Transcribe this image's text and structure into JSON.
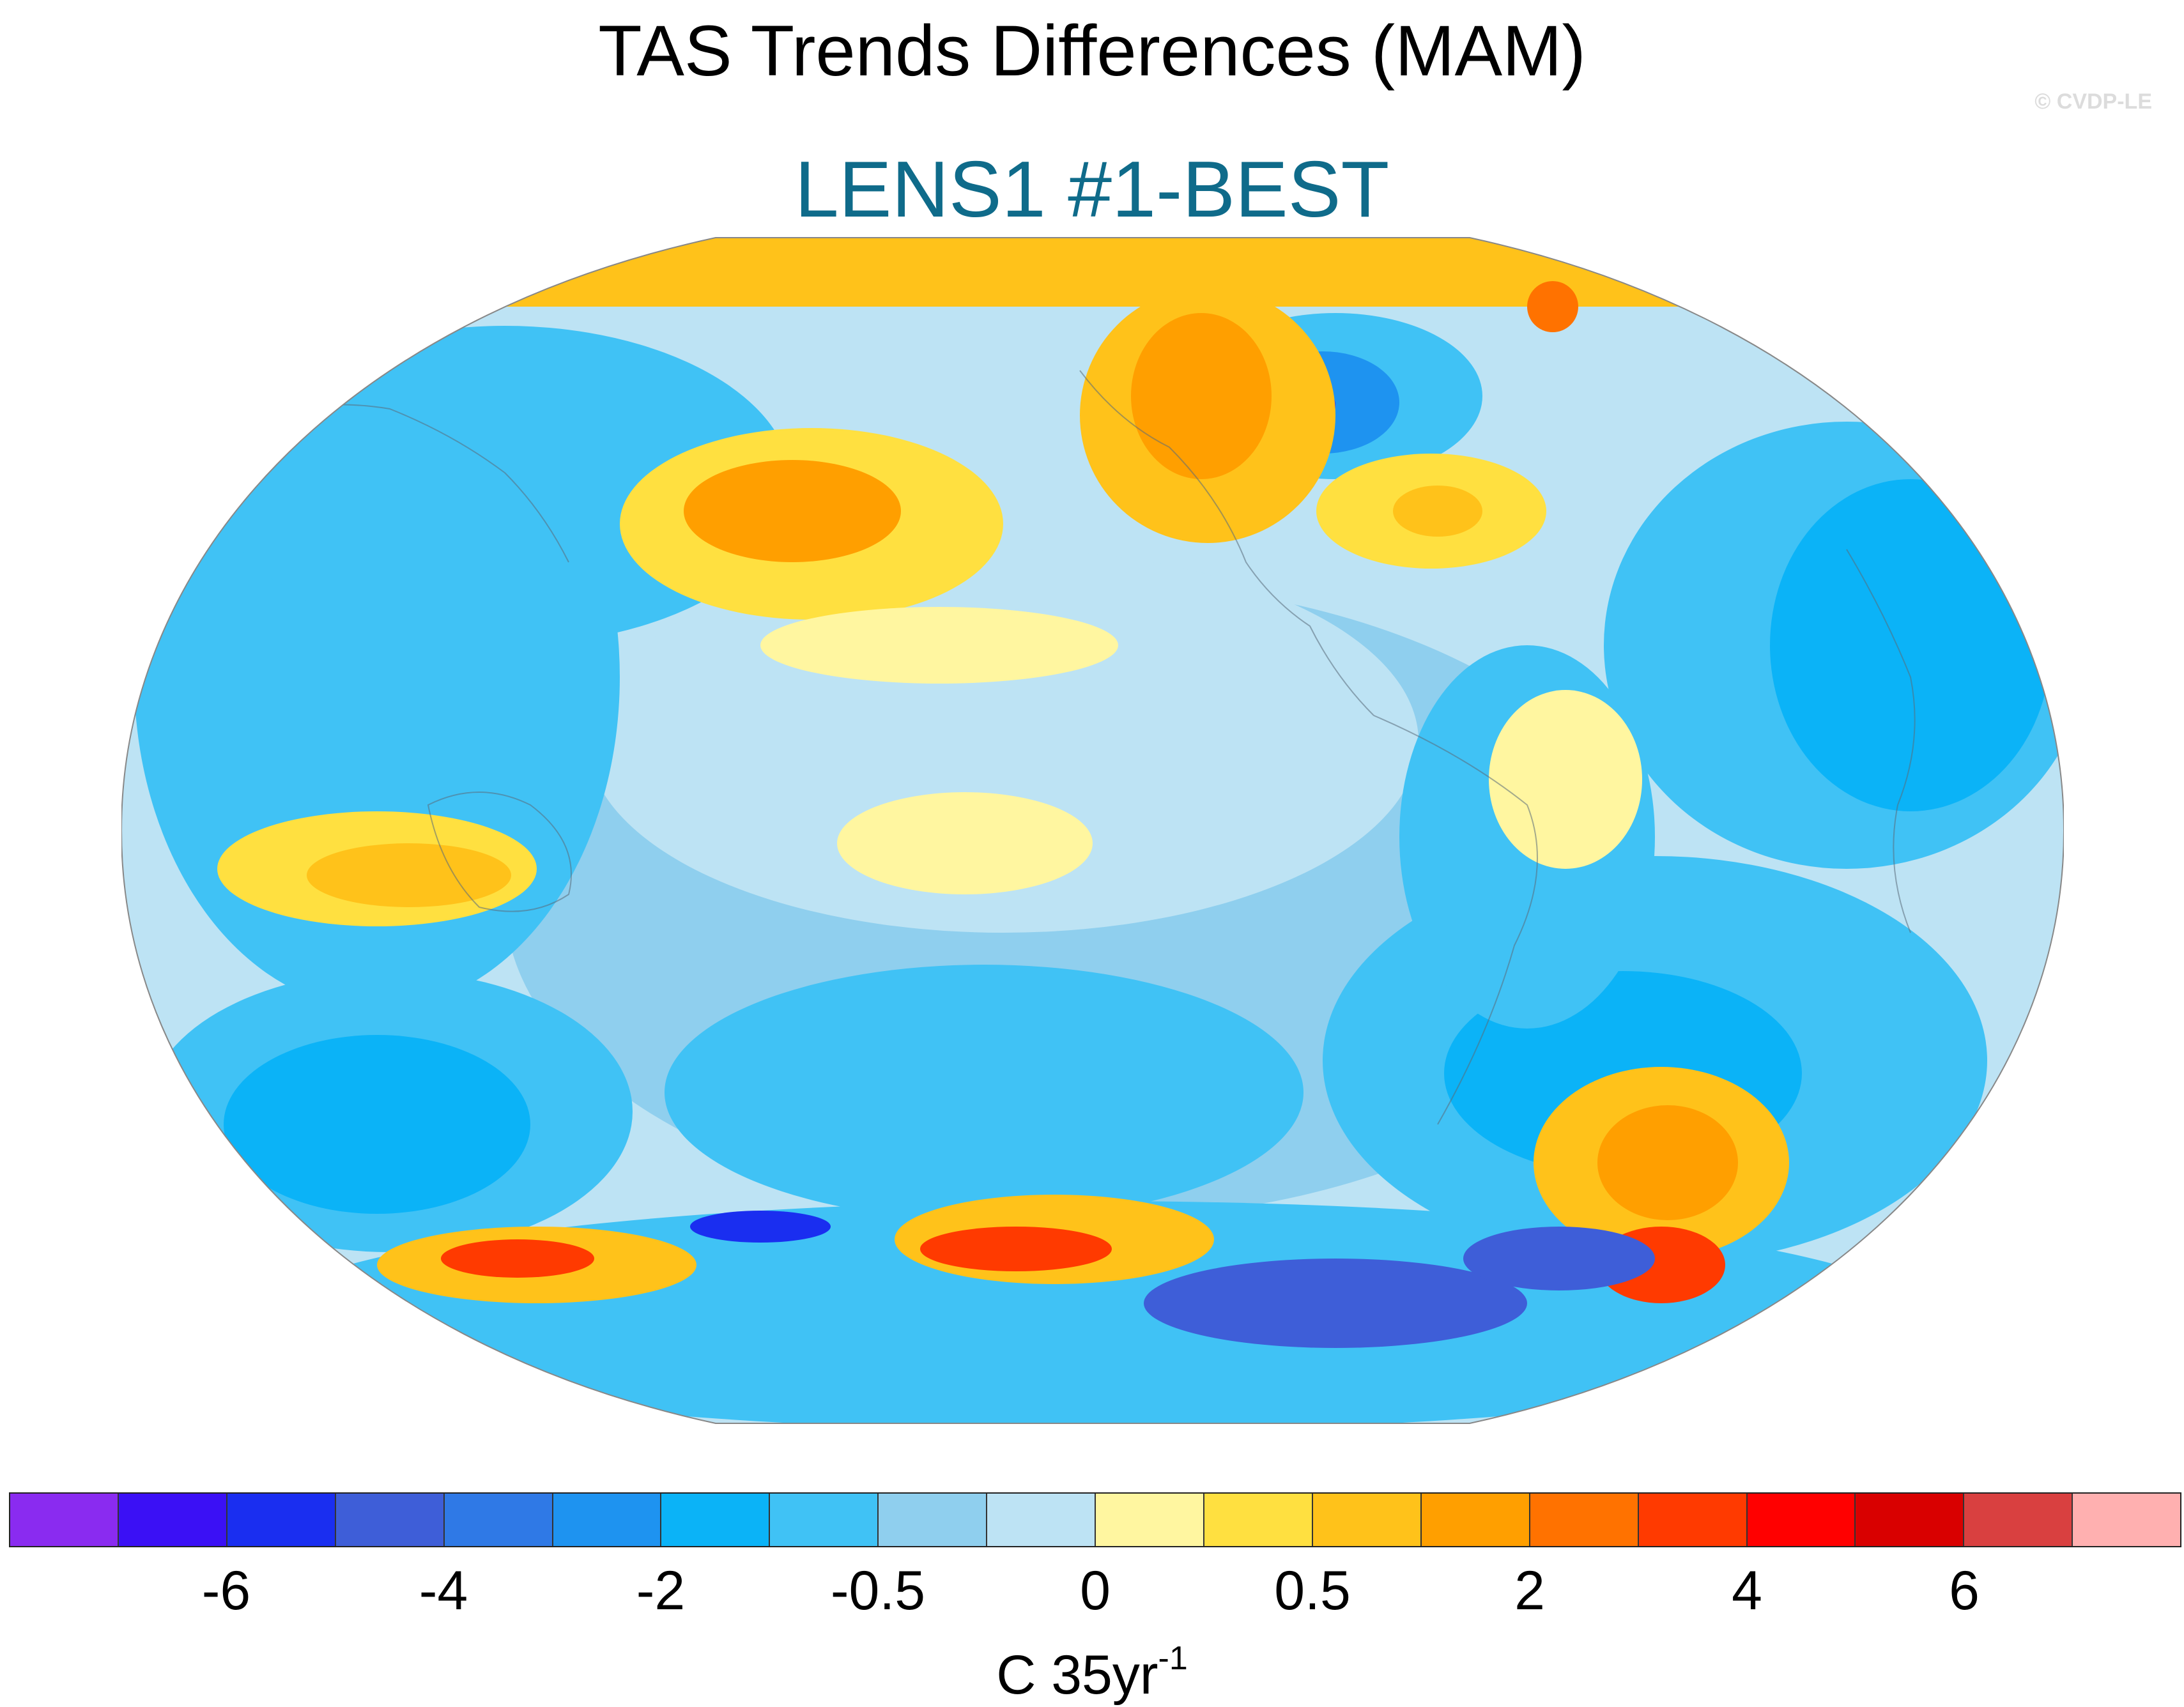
{
  "title": "TAS Trends Differences (MAM)",
  "subtitle": "LENS1 #1-BEST",
  "copyright": "© CVDP-LE",
  "subtitle_color": "#0f6b8a",
  "map": {
    "projection": "Robinson (Pacific-centered)",
    "variable": "TAS trend difference",
    "fill_style": "contoured fill with coastline overlay"
  },
  "colorbar": {
    "colors": [
      "#8a2bf0",
      "#3b10f5",
      "#1a2ef0",
      "#3e5ed8",
      "#2f79e6",
      "#1e93f0",
      "#0bb3f7",
      "#40c2f5",
      "#8fcfee",
      "#bde3f4",
      "#fff6a0",
      "#ffe040",
      "#ffc21a",
      "#ff9f00",
      "#ff7200",
      "#ff3a00",
      "#ff0000",
      "#d90000",
      "#d94040",
      "#ffb0b0"
    ],
    "ticks": [
      {
        "label": "-6",
        "value": -6
      },
      {
        "label": "-4",
        "value": -4
      },
      {
        "label": "-2",
        "value": -2
      },
      {
        "label": "-0.5",
        "value": -0.5
      },
      {
        "label": "0",
        "value": 0
      },
      {
        "label": "0.5",
        "value": 0.5
      },
      {
        "label": "2",
        "value": 2
      },
      {
        "label": "4",
        "value": 4
      },
      {
        "label": "6",
        "value": 6
      }
    ],
    "units_base": "C 35yr",
    "units_exponent": "-1"
  }
}
